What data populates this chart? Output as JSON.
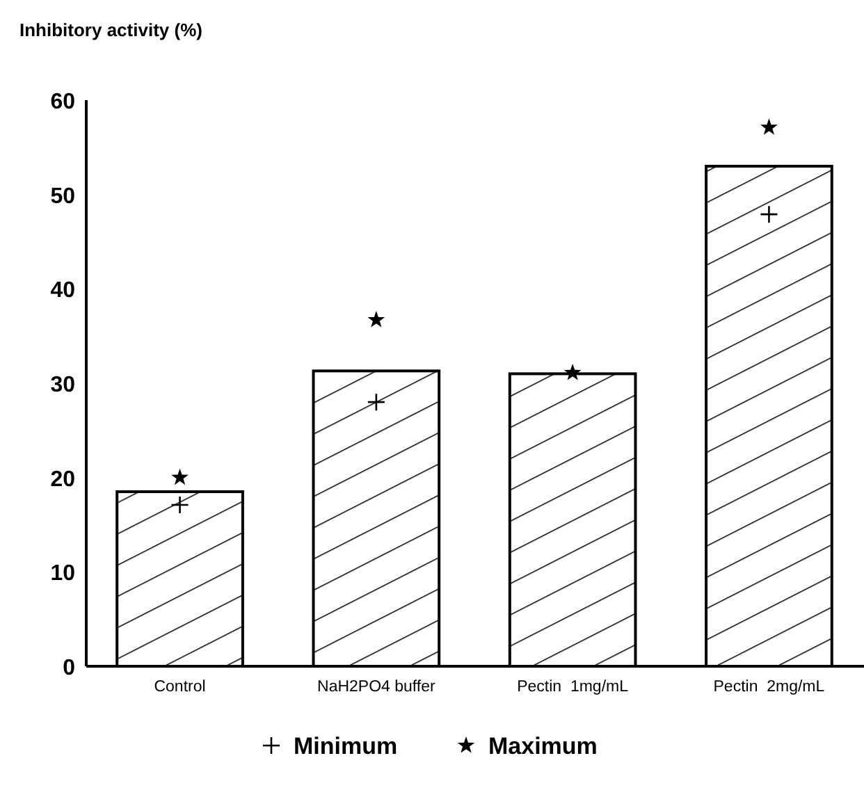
{
  "chart_data": {
    "type": "bar",
    "ylabel": "Inhibitory activity (%)",
    "categories": [
      "Control",
      "NaH2PO4 buffer",
      "Pectin  1mg/mL",
      "Pectin  2mg/mL"
    ],
    "series": [
      {
        "color": "#000000",
        "values": [
          18.5,
          31.3,
          31.0,
          53.0
        ]
      },
      {
        "type": "scatter",
        "name": "Minimum",
        "color": "#000000",
        "marker": "cross",
        "values": [
          17.1,
          28.0,
          null,
          47.9
        ]
      },
      {
        "type": "scatter",
        "name": "Maximum",
        "color": "#000000",
        "marker": "star",
        "values": [
          20.0,
          36.7,
          31.1,
          57.1
        ]
      }
    ],
    "ylim": [
      0,
      60
    ],
    "yticks": [
      0,
      10,
      20,
      30,
      40,
      50,
      60
    ],
    "grid": false,
    "legend": "bottom"
  }
}
